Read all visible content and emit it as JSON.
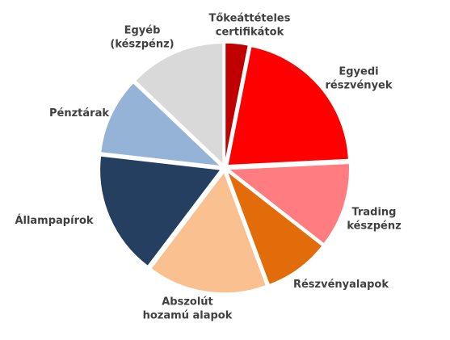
{
  "chart_data": {
    "type": "pie",
    "title": "",
    "start_angle_deg": 0,
    "direction": "clockwise",
    "exploded": true,
    "slices": [
      {
        "label": [
          "Tőkeáttételes",
          "certifikátok"
        ],
        "value": 3,
        "color": "#c00000"
      },
      {
        "label": [
          "Egyedi",
          "részvények"
        ],
        "value": 20.5,
        "color": "#ff0000"
      },
      {
        "label": [
          "Trading",
          "készpénz"
        ],
        "value": 11,
        "color": "#ff7c80"
      },
      {
        "label": [
          "Részvényalapok"
        ],
        "value": 8.5,
        "color": "#e36c0a"
      },
      {
        "label": [
          "Abszolút",
          "hozamú alapok"
        ],
        "value": 15.5,
        "color": "#fac090"
      },
      {
        "label": [
          "Állampapírok"
        ],
        "value": 16,
        "color": "#243f60"
      },
      {
        "label": [
          "Pénztárak"
        ],
        "value": 10,
        "color": "#95b3d7"
      },
      {
        "label": [
          "Egyéb",
          "(készpénz)"
        ],
        "value": 12.5,
        "color": "#d9d9d9"
      }
    ]
  }
}
